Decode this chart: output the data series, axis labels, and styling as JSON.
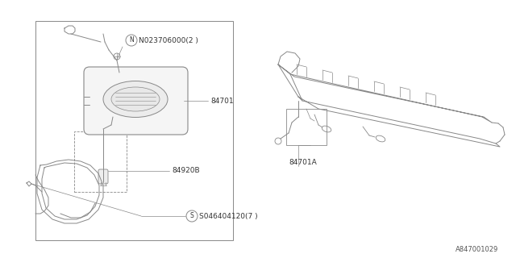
{
  "background_color": "#ffffff",
  "line_color": "#888888",
  "text_color": "#333333",
  "diagram_id": "A847001029",
  "labels": {
    "S046404120": "S046404120(7 )",
    "84920B": "84920B",
    "84701": "84701",
    "N023706000": "N023706000(2 )",
    "84701A": "84701A"
  },
  "figsize": [
    6.4,
    3.2
  ],
  "dpi": 100
}
